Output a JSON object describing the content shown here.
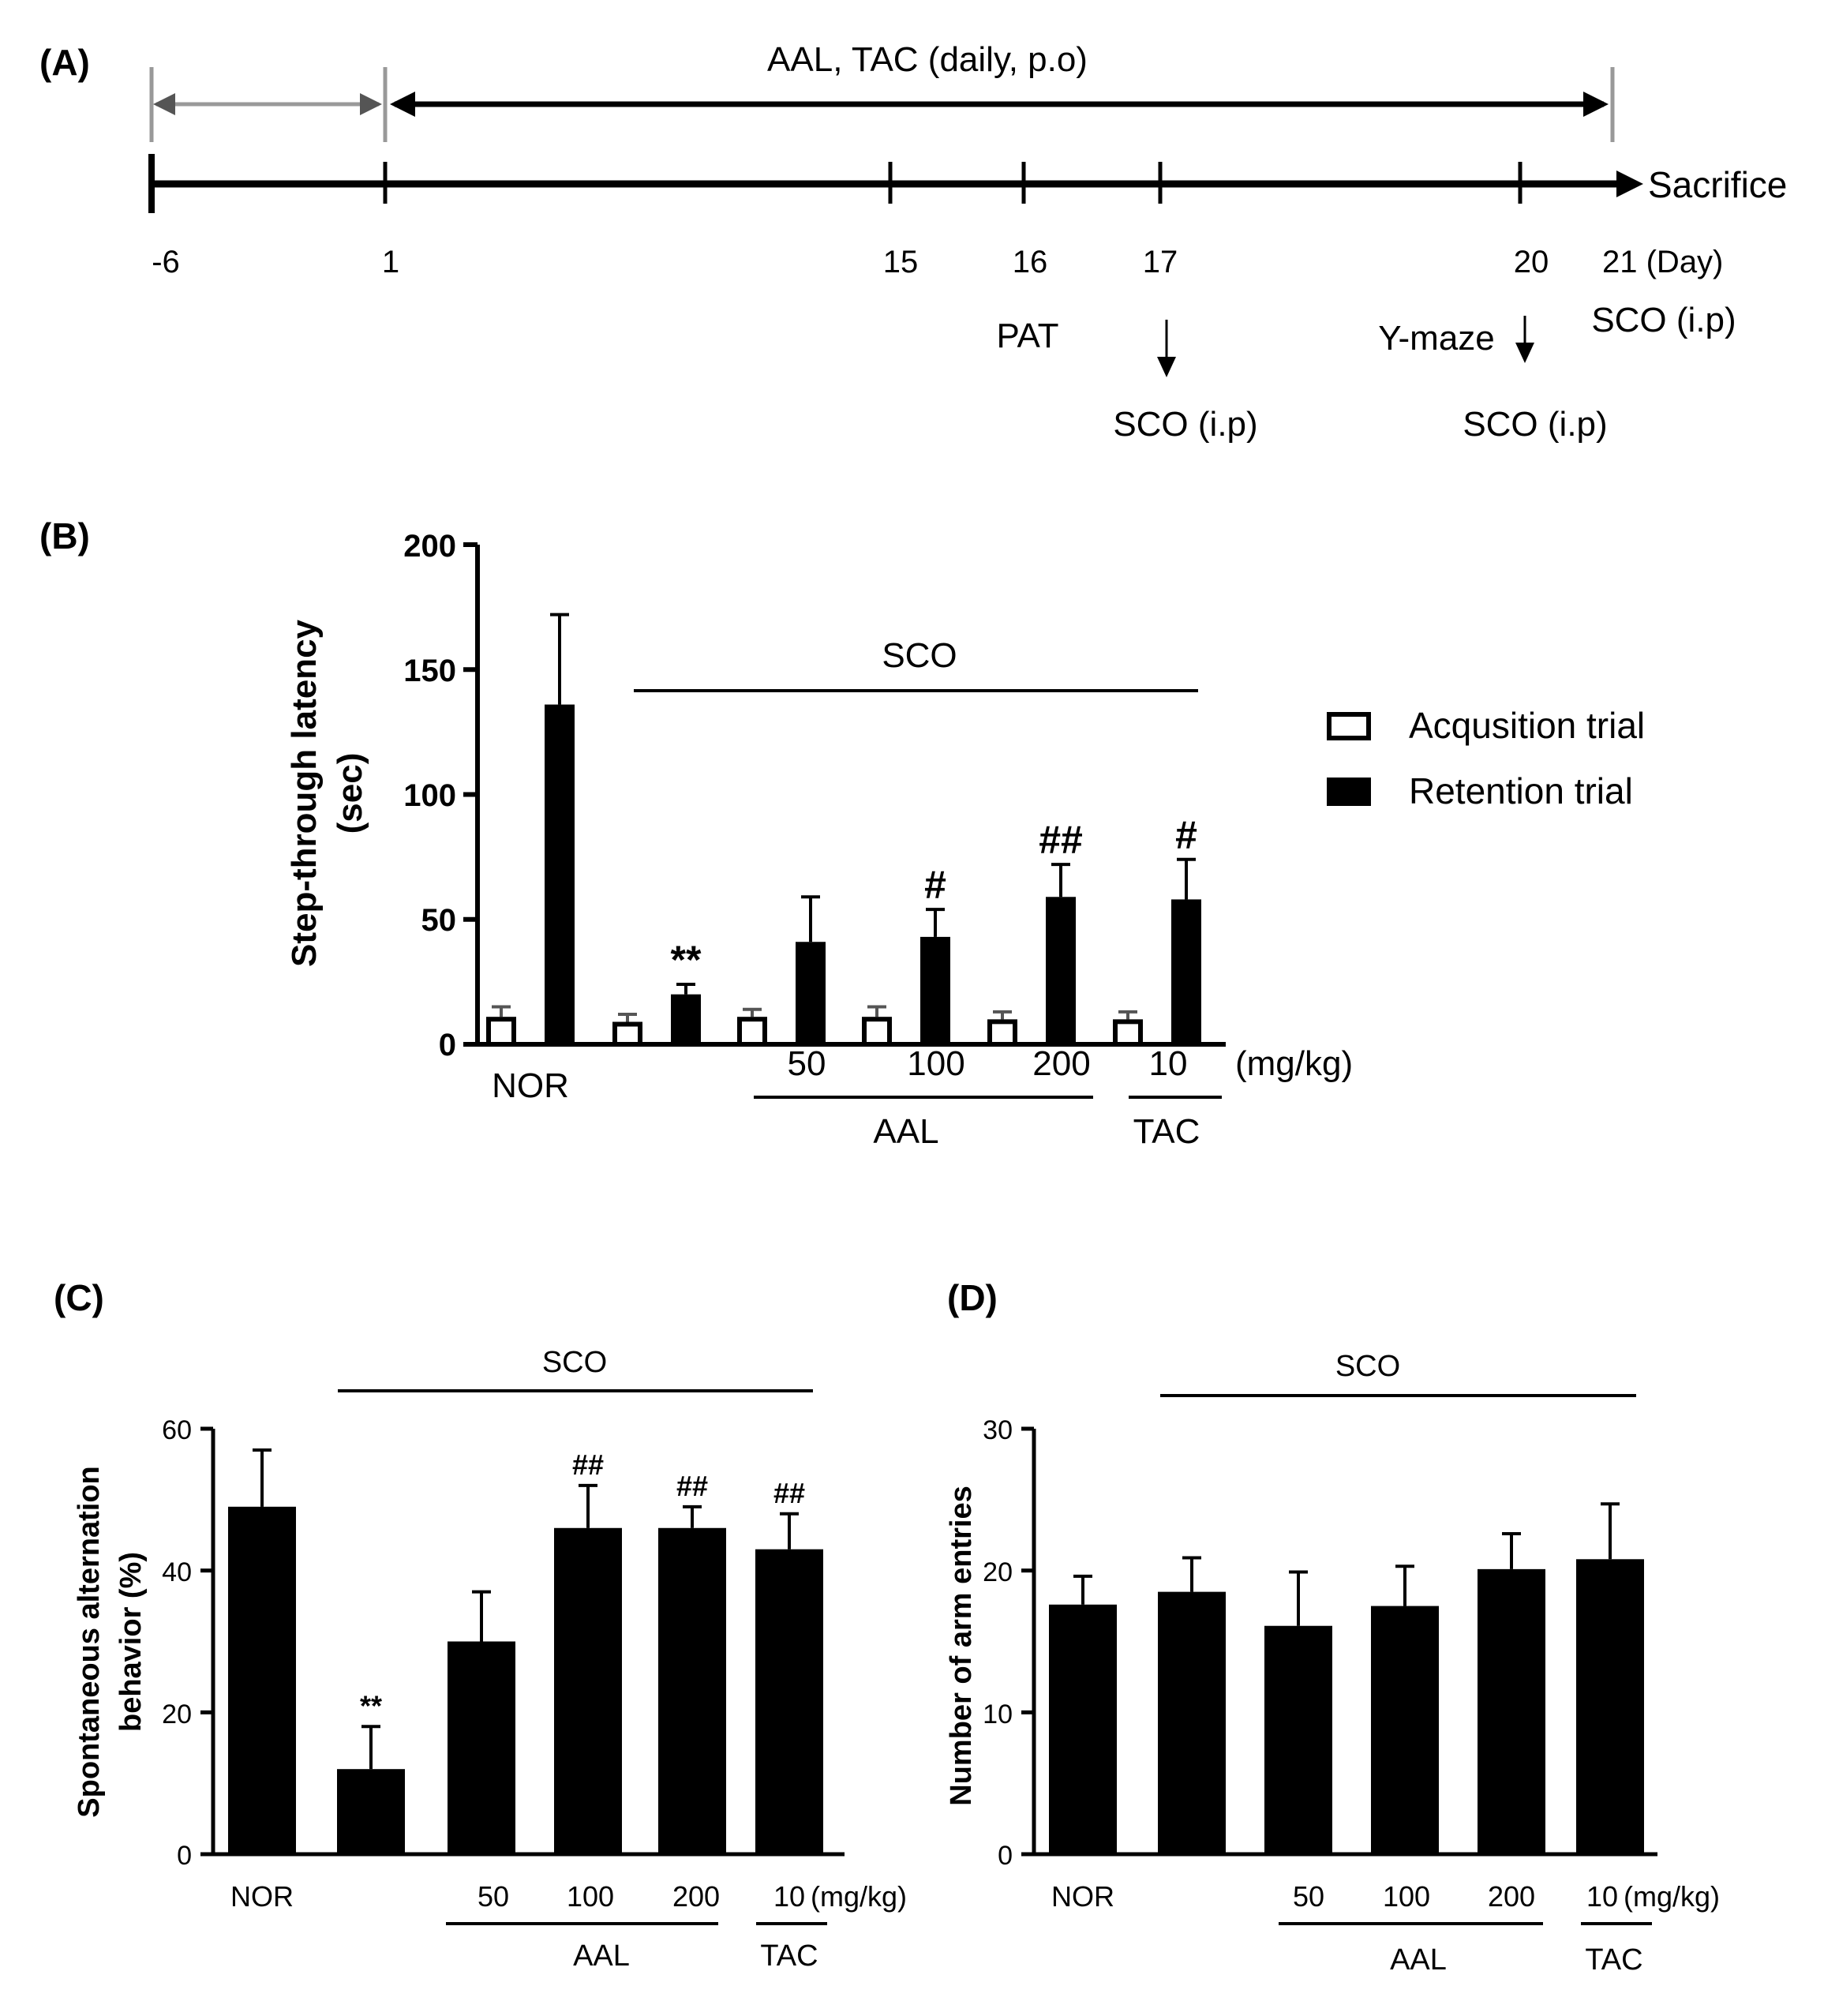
{
  "panels": {
    "A": {
      "label": "(A)",
      "treatment": "AAL, TAC (daily, p.o)",
      "end_label": "Sacrifice",
      "days": [
        "-6",
        "1",
        "15",
        "16",
        "17",
        "20",
        "21 (Day)"
      ],
      "events": {
        "pat": "PAT",
        "sco_17": "SCO (i.p)",
        "ymaze": "Y-maze",
        "sco_20": "SCO (i.p)",
        "sco_21": "SCO (i.p)"
      }
    },
    "B": {
      "label": "(B)"
    },
    "C": {
      "label": "(C)"
    },
    "D": {
      "label": "(D)"
    }
  },
  "chart_data": [
    {
      "id": "B",
      "type": "bar",
      "ylabel_line1": "Step-through latency",
      "ylabel_line2": "(sec)",
      "ylim": [
        0,
        200
      ],
      "yticks": [
        "0",
        "50",
        "100",
        "150",
        "200"
      ],
      "categories": [
        "NOR",
        "",
        "50",
        "100",
        "200",
        "10"
      ],
      "unit_label": "(mg/kg)",
      "sco_label": "SCO",
      "group_labels": {
        "aal": "AAL",
        "tac": "TAC"
      },
      "legend": {
        "acquisition": "Acqusition trial",
        "retention": "Retention trial"
      },
      "series": [
        {
          "name": "Acqusition trial",
          "fill": "#ffffff",
          "values": [
            11,
            9,
            11,
            11,
            10,
            10
          ],
          "errors": [
            4,
            3,
            3,
            4,
            3,
            3
          ]
        },
        {
          "name": "Retention trial",
          "fill": "#000000",
          "values": [
            136,
            20,
            41,
            43,
            59,
            58
          ],
          "errors": [
            36,
            4,
            18,
            11,
            13,
            16
          ]
        }
      ],
      "annotations": [
        "",
        "**",
        "",
        "#",
        "##",
        "#"
      ]
    },
    {
      "id": "C",
      "type": "bar",
      "ylabel_line1": "Spontaneous alternation",
      "ylabel_line2": "behavior (%)",
      "ylim": [
        0,
        60
      ],
      "yticks": [
        "0",
        "20",
        "40",
        "60"
      ],
      "categories": [
        "NOR",
        "",
        "50",
        "100",
        "200",
        "10"
      ],
      "unit_label": "(mg/kg)",
      "sco_label": "SCO",
      "group_labels": {
        "aal": "AAL",
        "tac": "TAC"
      },
      "series": [
        {
          "name": "alternation",
          "fill": "#000000",
          "values": [
            49,
            12,
            30,
            46,
            46,
            43
          ],
          "errors": [
            8,
            6,
            7,
            6,
            3,
            5
          ]
        }
      ],
      "annotations": [
        "",
        "**",
        "",
        "##",
        "##",
        "##"
      ]
    },
    {
      "id": "D",
      "type": "bar",
      "ylabel_line1": "Number of arm entries",
      "ylim": [
        0,
        30
      ],
      "yticks": [
        "0",
        "10",
        "20",
        "30"
      ],
      "categories": [
        "NOR",
        "",
        "50",
        "100",
        "200",
        "10"
      ],
      "unit_label": "(mg/kg)",
      "sco_label": "SCO",
      "group_labels": {
        "aal": "AAL",
        "tac": "TAC"
      },
      "series": [
        {
          "name": "entries",
          "fill": "#000000",
          "values": [
            17.6,
            18.5,
            16.1,
            17.5,
            20.1,
            20.8
          ],
          "errors": [
            2,
            2.4,
            3.8,
            2.8,
            2.5,
            3.9
          ]
        }
      ],
      "annotations": [
        "",
        "",
        "",
        "",
        "",
        ""
      ]
    }
  ]
}
